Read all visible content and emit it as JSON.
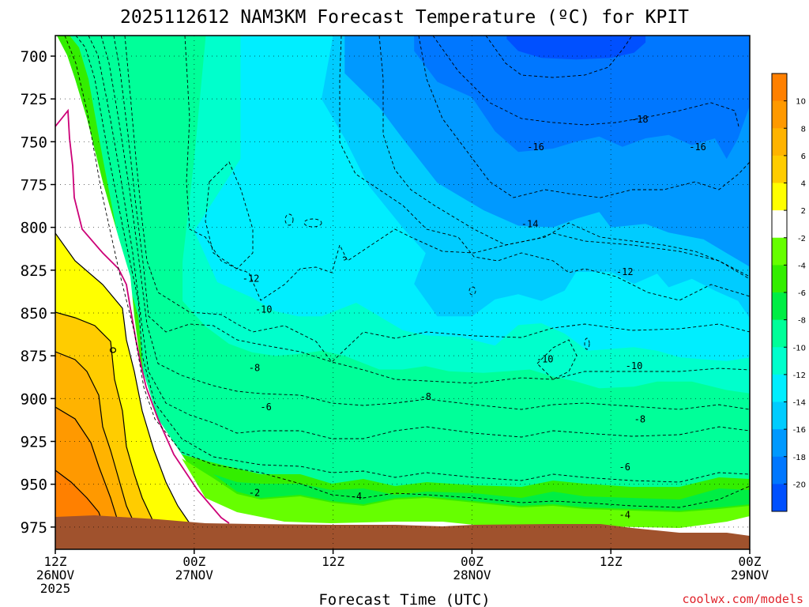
{
  "chart_data": {
    "type": "heatmap",
    "title": "2025112612 NAM3KM Forecast Temperature (ºC) for KPIT",
    "xlabel": "Forecast Time (UTC)",
    "ylabel": "",
    "credit": "coolwx.com/models",
    "x_ticks": [
      {
        "hours": 0,
        "line1": "12Z",
        "line2": "26NOV",
        "line3": "2025"
      },
      {
        "hours": 12,
        "line1": "00Z",
        "line2": "27NOV",
        "line3": ""
      },
      {
        "hours": 24,
        "line1": "12Z",
        "line2": "",
        "line3": ""
      },
      {
        "hours": 36,
        "line1": "00Z",
        "line2": "28NOV",
        "line3": ""
      },
      {
        "hours": 48,
        "line1": "12Z",
        "line2": "",
        "line3": ""
      },
      {
        "hours": 60,
        "line1": "00Z",
        "line2": "29NOV",
        "line3": ""
      }
    ],
    "xlim": [
      0,
      60
    ],
    "y_ticks": [
      700,
      725,
      750,
      775,
      800,
      825,
      850,
      875,
      900,
      925,
      950,
      975
    ],
    "ylim": [
      688,
      988
    ],
    "y_axis": "pressure (hPa), inverted",
    "colorbar_labels": [
      "10",
      "8",
      "6",
      "4",
      "2",
      "-2",
      "-4",
      "-6",
      "-8",
      "-10",
      "-12",
      "-14",
      "-16",
      "-18",
      "-20"
    ],
    "colorbar_colors": [
      "#ff8000",
      "#ff9900",
      "#ffb300",
      "#ffcc00",
      "#ffff00",
      "#ffffff",
      "#66ff00",
      "#33ee00",
      "#00ee44",
      "#00ff99",
      "#00ffcc",
      "#00eeff",
      "#00ccff",
      "#0099ff",
      "#0077ff",
      "#0050ff"
    ],
    "contour_labels": [
      {
        "text": "-18",
        "h": 50.5,
        "p": 737
      },
      {
        "text": "-16",
        "h": 41.5,
        "p": 753
      },
      {
        "text": "-16",
        "h": 55.5,
        "p": 753
      },
      {
        "text": "-14",
        "h": 41.0,
        "p": 798
      },
      {
        "text": "-12",
        "h": 16.9,
        "p": 830
      },
      {
        "text": "-12",
        "h": 49.2,
        "p": 826
      },
      {
        "text": "-10",
        "h": 18.0,
        "p": 848
      },
      {
        "text": "-10",
        "h": 42.3,
        "p": 877
      },
      {
        "text": "-10",
        "h": 50.0,
        "p": 881
      },
      {
        "text": "-8",
        "h": 17.2,
        "p": 882
      },
      {
        "text": "-8",
        "h": 32.0,
        "p": 899
      },
      {
        "text": "-8",
        "h": 50.5,
        "p": 912
      },
      {
        "text": "-6",
        "h": 18.2,
        "p": 905
      },
      {
        "text": "-6",
        "h": 49.2,
        "p": 940
      },
      {
        "text": "-4",
        "h": 26.0,
        "p": 957
      },
      {
        "text": "-4",
        "h": 49.2,
        "p": 968
      },
      {
        "text": "-2",
        "h": 17.2,
        "p": 955
      }
    ],
    "fill_levels": [
      {
        "name": "below-minus-18",
        "color": "#0050ff",
        "boundary": [
          [
            39,
            688
          ],
          [
            39,
            690
          ],
          [
            40,
            697
          ],
          [
            42,
            701
          ],
          [
            45,
            702
          ],
          [
            48,
            701
          ],
          [
            50,
            698
          ],
          [
            51,
            692
          ],
          [
            51,
            688
          ]
        ]
      },
      {
        "name": "minus-16-to-18",
        "color": "#0077ff",
        "boundary": [
          [
            31,
            688
          ],
          [
            31,
            697
          ],
          [
            33,
            715
          ],
          [
            36,
            724
          ],
          [
            38,
            744
          ],
          [
            40,
            756
          ],
          [
            43,
            754
          ],
          [
            45,
            750
          ],
          [
            47,
            747
          ],
          [
            49,
            753
          ],
          [
            51,
            748
          ],
          [
            53,
            746
          ],
          [
            55,
            752
          ],
          [
            57,
            748
          ],
          [
            58,
            760
          ],
          [
            59,
            748
          ],
          [
            60,
            729
          ],
          [
            60,
            688
          ]
        ]
      },
      {
        "name": "minus-14-to-16",
        "color": "#0099ff",
        "boundary": [
          [
            25,
            688
          ],
          [
            25,
            710
          ],
          [
            28,
            730
          ],
          [
            30,
            748
          ],
          [
            33,
            774
          ],
          [
            37,
            790
          ],
          [
            40,
            799
          ],
          [
            43,
            800
          ],
          [
            45,
            795
          ],
          [
            47,
            791
          ],
          [
            48,
            800
          ],
          [
            51,
            798
          ],
          [
            53,
            803
          ],
          [
            56,
            807
          ],
          [
            58,
            815
          ],
          [
            60,
            823
          ],
          [
            60,
            688
          ]
        ]
      },
      {
        "name": "minus-12-to-14",
        "color": "#00ccff",
        "boundary": [
          [
            24,
            688
          ],
          [
            23,
            725
          ],
          [
            25,
            748
          ],
          [
            27,
            775
          ],
          [
            30,
            800
          ],
          [
            32,
            815
          ],
          [
            31,
            833
          ],
          [
            33,
            852
          ],
          [
            36,
            852
          ],
          [
            38,
            842
          ],
          [
            40,
            839
          ],
          [
            42,
            843
          ],
          [
            44,
            837
          ],
          [
            45,
            826
          ],
          [
            48,
            826
          ],
          [
            50,
            833
          ],
          [
            52,
            827
          ],
          [
            53,
            835
          ],
          [
            55,
            830
          ],
          [
            57,
            837
          ],
          [
            59,
            843
          ],
          [
            60,
            853
          ],
          [
            60,
            688
          ]
        ]
      },
      {
        "name": "minus-10-to-12",
        "color": "#00eeff",
        "boundary": [
          [
            16,
            688
          ],
          [
            16,
            760
          ],
          [
            12,
            802
          ],
          [
            14,
            832
          ],
          [
            17,
            841
          ],
          [
            19,
            849
          ],
          [
            21,
            852
          ],
          [
            23,
            852
          ],
          [
            26,
            844
          ],
          [
            28,
            852
          ],
          [
            30,
            860
          ],
          [
            32,
            863
          ],
          [
            35,
            864
          ],
          [
            38,
            869
          ],
          [
            40,
            857
          ],
          [
            42,
            856
          ],
          [
            44,
            862
          ],
          [
            46,
            872
          ],
          [
            48,
            871
          ],
          [
            50,
            870
          ],
          [
            52,
            872
          ],
          [
            54,
            876
          ],
          [
            56,
            877
          ],
          [
            58,
            878
          ],
          [
            60,
            876
          ],
          [
            60,
            688
          ]
        ]
      },
      {
        "name": "minus-8-to-10",
        "color": "#00ffcc",
        "boundary": [
          [
            13,
            688
          ],
          [
            12,
            760
          ],
          [
            11,
            820
          ],
          [
            11,
            843
          ],
          [
            13,
            858
          ],
          [
            15,
            868
          ],
          [
            17,
            873
          ],
          [
            19,
            875
          ],
          [
            21,
            874
          ],
          [
            23,
            872
          ],
          [
            25,
            875
          ],
          [
            28,
            883
          ],
          [
            30,
            883
          ],
          [
            32,
            881
          ],
          [
            34,
            884
          ],
          [
            37,
            885
          ],
          [
            39,
            884
          ],
          [
            41,
            883
          ],
          [
            43,
            887
          ],
          [
            45,
            890
          ],
          [
            47,
            894
          ],
          [
            50,
            893
          ],
          [
            52,
            890
          ],
          [
            55,
            890
          ],
          [
            58,
            895
          ],
          [
            60,
            897
          ],
          [
            60,
            688
          ]
        ]
      }
    ]
  }
}
